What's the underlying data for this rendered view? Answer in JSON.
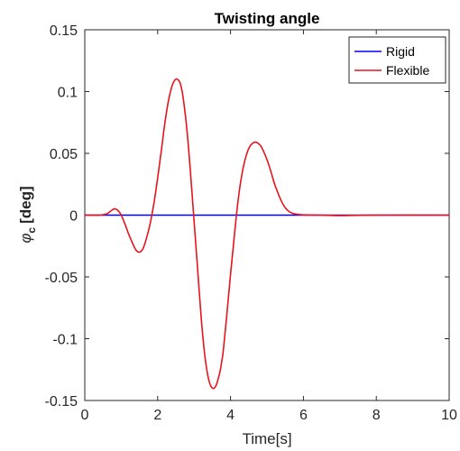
{
  "chart_data": {
    "type": "line",
    "title": "Twisting angle",
    "xlabel": "Time[s]",
    "ylabel_symbol": "φ",
    "ylabel_subscript": "c",
    "ylabel_unit": "[deg]",
    "xlim": [
      0,
      10
    ],
    "ylim": [
      -0.15,
      0.15
    ],
    "xticks": [
      0,
      2,
      4,
      6,
      8,
      10
    ],
    "xtick_labels": [
      "0",
      "2",
      "4",
      "6",
      "8",
      "10"
    ],
    "yticks": [
      0.15,
      0.1,
      0.05,
      0,
      -0.05,
      -0.1,
      -0.15
    ],
    "ytick_labels": [
      "0.15",
      "0.1",
      "0.05",
      "0",
      "-0.05",
      "-0.1",
      "-0.15"
    ],
    "grid": false,
    "legend_position": "top-right",
    "series": [
      {
        "name": "Rigid",
        "color": "#0000ff",
        "x": [
          0,
          10
        ],
        "y": [
          0,
          0
        ]
      },
      {
        "name": "Flexible",
        "color": "#e8141c",
        "x": [
          0,
          0.4,
          0.6,
          0.7,
          0.8,
          0.9,
          1.0,
          1.1,
          1.2,
          1.3,
          1.4,
          1.5,
          1.6,
          1.7,
          1.8,
          1.9,
          2.0,
          2.1,
          2.2,
          2.3,
          2.4,
          2.5,
          2.6,
          2.65,
          2.7,
          2.8,
          2.9,
          3.0,
          3.1,
          3.2,
          3.3,
          3.4,
          3.5,
          3.6,
          3.7,
          3.75,
          3.8,
          3.9,
          4.0,
          4.1,
          4.2,
          4.3,
          4.4,
          4.5,
          4.6,
          4.7,
          4.8,
          4.85,
          4.9,
          5.0,
          5.1,
          5.2,
          5.3,
          5.4,
          5.5,
          5.6,
          5.7,
          5.8,
          5.9,
          6.0,
          6.2,
          6.5,
          7.0,
          8.0,
          10.0
        ],
        "y": [
          0,
          0,
          0.001,
          0.003,
          0.005,
          0.004,
          0.0,
          -0.007,
          -0.015,
          -0.022,
          -0.028,
          -0.03,
          -0.027,
          -0.018,
          -0.006,
          0.01,
          0.03,
          0.052,
          0.075,
          0.093,
          0.105,
          0.11,
          0.108,
          0.103,
          0.095,
          0.07,
          0.035,
          -0.005,
          -0.045,
          -0.085,
          -0.115,
          -0.133,
          -0.14,
          -0.138,
          -0.128,
          -0.12,
          -0.11,
          -0.08,
          -0.048,
          -0.018,
          0.01,
          0.031,
          0.045,
          0.054,
          0.058,
          0.059,
          0.057,
          0.055,
          0.052,
          0.045,
          0.036,
          0.026,
          0.018,
          0.011,
          0.006,
          0.003,
          0.0015,
          0.0008,
          0.0004,
          0.0002,
          0.0001,
          0.0,
          -0.0004,
          0.0,
          0.0
        ]
      }
    ]
  }
}
